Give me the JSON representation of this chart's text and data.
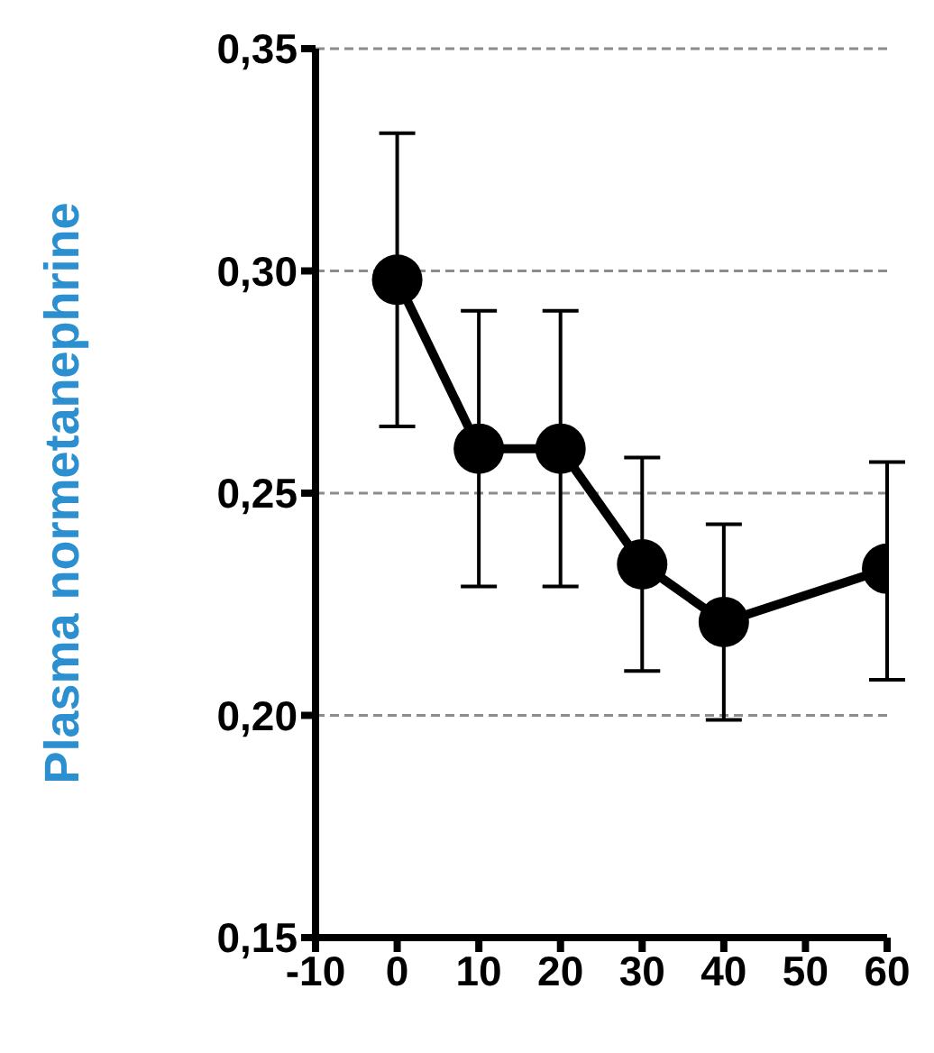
{
  "chart_data": {
    "type": "line",
    "ylabel": "Plasma normetanephrine",
    "x": [
      0,
      10,
      20,
      30,
      40,
      60
    ],
    "series": [
      {
        "color": "#000000",
        "values": [
          0.298,
          0.26,
          0.26,
          0.234,
          0.221,
          0.233
        ],
        "errors": [
          [
            0.265,
            0.331
          ],
          [
            0.229,
            0.291
          ],
          [
            0.229,
            0.291
          ],
          [
            0.21,
            0.258
          ],
          [
            0.199,
            0.243
          ],
          [
            0.208,
            0.257
          ]
        ]
      }
    ],
    "xlim": [
      -10,
      60
    ],
    "xticks": [
      -10,
      0,
      10,
      20,
      30,
      40,
      50,
      60
    ],
    "ylim": [
      0.15,
      0.35
    ],
    "yticks": [
      {
        "value": 0.15,
        "label": "0,15"
      },
      {
        "value": 0.2,
        "label": "0,20"
      },
      {
        "value": 0.25,
        "label": "0,25"
      },
      {
        "value": 0.3,
        "label": "0,30"
      },
      {
        "value": 0.35,
        "label": "0,35"
      }
    ],
    "grid": "y",
    "marker": "circle",
    "line_style": "solid"
  }
}
